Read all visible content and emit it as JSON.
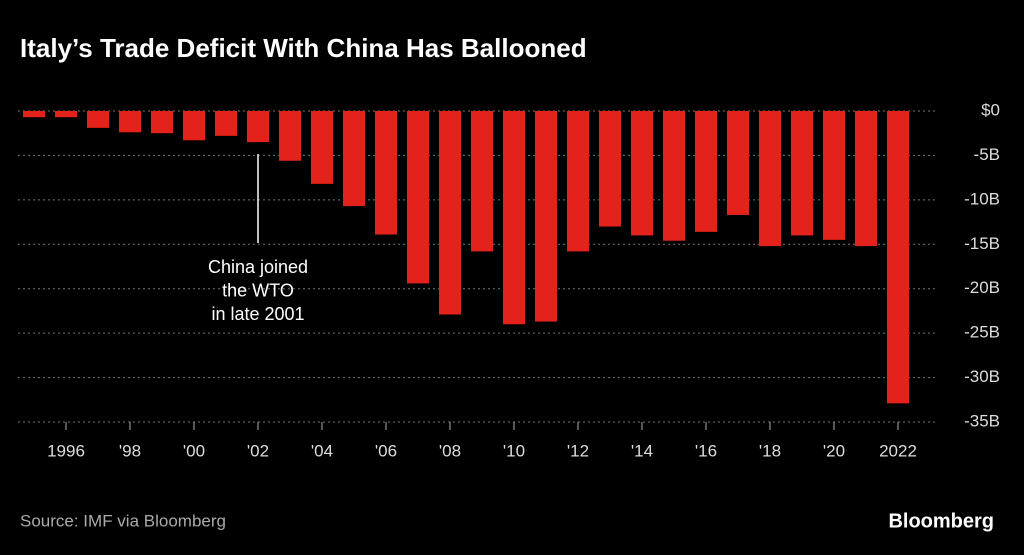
{
  "chart_data": {
    "type": "bar",
    "title": "Italy’s Trade Deficit With China Has Ballooned",
    "source": "Source: IMF via Bloomberg",
    "brand": "Bloomberg",
    "annotation": {
      "lines": [
        "China joined",
        "the WTO",
        "in late 2001"
      ],
      "category_index": 7
    },
    "categories": [
      null,
      "1996",
      null,
      "'98",
      null,
      "'00",
      null,
      "'02",
      null,
      "'04",
      null,
      "'06",
      null,
      "'08",
      null,
      "'10",
      null,
      "'12",
      null,
      "'14",
      null,
      "'16",
      null,
      "'18",
      null,
      "'20",
      null,
      "2022"
    ],
    "values": [
      -0.7,
      -0.7,
      -1.9,
      -2.4,
      -2.5,
      -3.3,
      -2.8,
      -3.5,
      -5.6,
      -8.2,
      -10.7,
      -13.9,
      -19.4,
      -22.9,
      -15.8,
      -24.0,
      -23.7,
      -15.8,
      -13.0,
      -14.0,
      -14.6,
      -13.6,
      -11.7,
      -15.2,
      -14.0,
      -14.5,
      -15.2,
      -32.9
    ],
    "color": "#e3231b",
    "ylim": [
      -35,
      0
    ],
    "yticks": [
      {
        "value": 0,
        "label": "$0"
      },
      {
        "value": -5,
        "label": "-5B"
      },
      {
        "value": -10,
        "label": "-10B"
      },
      {
        "value": -15,
        "label": "-15B"
      },
      {
        "value": -20,
        "label": "-20B"
      },
      {
        "value": -25,
        "label": "-25B"
      },
      {
        "value": -30,
        "label": "-30B"
      },
      {
        "value": -35,
        "label": "-35B"
      }
    ],
    "grid": true
  }
}
